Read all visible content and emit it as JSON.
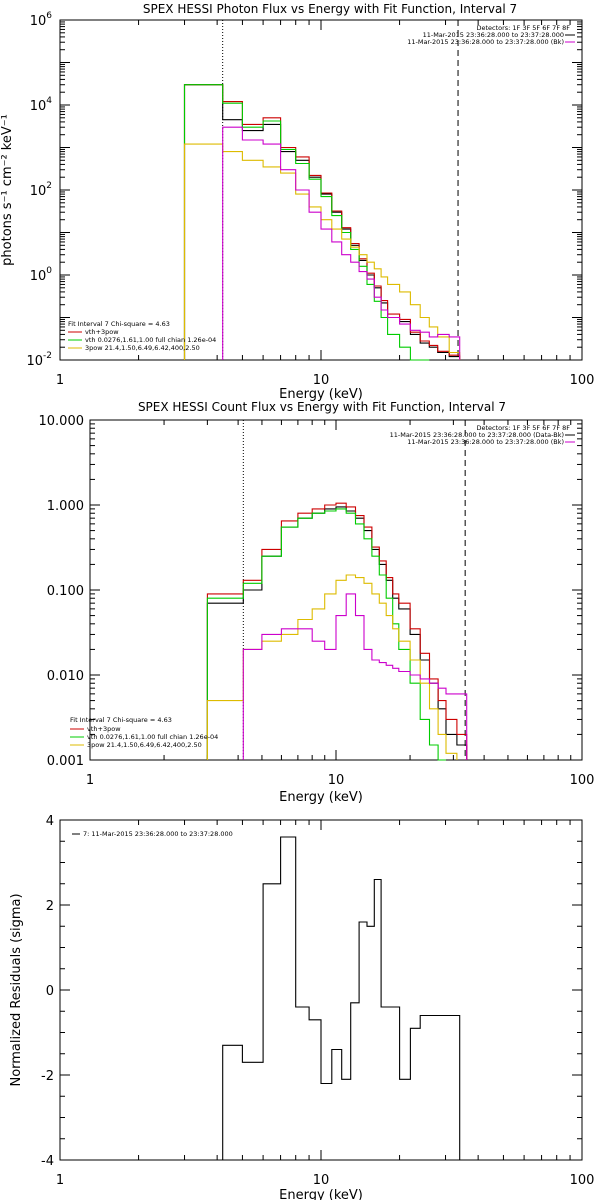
{
  "chart_data": [
    {
      "type": "line",
      "title": "SPEX HESSI Photon Flux vs Energy with Fit Function, Interval 7",
      "xlabel": "Energy (keV)",
      "ylabel": "photons s⁻¹ cm⁻² keV⁻¹",
      "xscale": "log",
      "yscale": "log",
      "xlim": [
        1,
        100
      ],
      "ylim": [
        0.01,
        1000000
      ],
      "x_ticks": [
        "1",
        "10",
        "100"
      ],
      "y_ticks": [
        {
          "v": 0.01,
          "base": "10",
          "exp": "-2"
        },
        {
          "v": 1,
          "base": "10",
          "exp": "0"
        },
        {
          "v": 100,
          "base": "10",
          "exp": "2"
        },
        {
          "v": 10000,
          "base": "10",
          "exp": "4"
        },
        {
          "v": 1000000,
          "base": "10",
          "exp": "6"
        }
      ],
      "vlines": [
        4.2,
        33.5
      ],
      "legend_right": [
        "Detectors: 1F 3F 5F 6F 7F 8F",
        "11-Mar-2015 23:36:28.000 to 23:37:28.000",
        "11-Mar-2015 23:36:28.000 to 23:37:28.000 (Bk)"
      ],
      "legend_left": {
        "header": "Fit Interval  7   Chi-square = 4.63",
        "items": [
          "vth+3pow",
          "vth 0.0276,1.61,1.00  full chian 1.26e-04",
          "3pow 21.4,1.50,6.49,6.42,400,2.50"
        ]
      },
      "edges": [
        3.0,
        4.2,
        5.0,
        6.0,
        7.0,
        8.0,
        9.0,
        10.0,
        11.0,
        12.0,
        13.0,
        14.0,
        15.0,
        16.0,
        17.0,
        18.0,
        20.0,
        22.0,
        24.0,
        26.0,
        28.0,
        31.0,
        34.0
      ],
      "series": [
        {
          "name": "data",
          "color": "#000000",
          "values": [
            30000,
            4500,
            2500,
            3500,
            800,
            500,
            200,
            80,
            30,
            12,
            5,
            2.2,
            1.0,
            0.5,
            0.22,
            0.1,
            0.08,
            0.04,
            0.025,
            0.02,
            0.015,
            0.012
          ]
        },
        {
          "name": "vth+3pow",
          "color": "#cc0000",
          "values": [
            30000,
            12000,
            3500,
            5000,
            1000,
            600,
            220,
            85,
            32,
            13,
            5.5,
            2.4,
            1.1,
            0.55,
            0.25,
            0.12,
            0.09,
            0.045,
            0.028,
            0.022,
            0.016,
            0.013
          ]
        },
        {
          "name": "vth",
          "color": "#00cc00",
          "values": [
            30000,
            11000,
            3000,
            4200,
            900,
            420,
            180,
            70,
            25,
            10,
            4,
            1.6,
            0.6,
            0.24,
            0.1,
            0.04,
            0.02,
            0.008,
            0.004
          ]
        },
        {
          "name": "3pow",
          "color": "#ddbb00",
          "values": [
            1200,
            800,
            500,
            350,
            250,
            80,
            40,
            20,
            12,
            7,
            4.5,
            3,
            2,
            1.4,
            0.9,
            0.6,
            0.4,
            0.2,
            0.1,
            0.06,
            0.035,
            0.015
          ]
        },
        {
          "name": "background",
          "color": "#cc00cc",
          "values": [
            null,
            3000,
            1500,
            1200,
            300,
            100,
            30,
            12,
            6,
            3,
            2,
            1.2,
            0.8,
            0.3,
            0.15,
            0.1,
            0.07,
            0.05,
            0.045,
            0.035,
            0.04,
            0.035
          ]
        }
      ]
    },
    {
      "type": "line",
      "title": "SPEX HESSI Count Flux vs Energy with Fit Function, Interval 7",
      "xlabel": "Energy (keV)",
      "ylabel": "",
      "xscale": "log",
      "yscale": "log",
      "xlim": [
        1,
        100
      ],
      "ylim": [
        0.001,
        10
      ],
      "x_ticks": [
        "1",
        "10",
        "100"
      ],
      "y_ticks": [
        {
          "v": 0.001,
          "label": "0.001"
        },
        {
          "v": 0.01,
          "label": "0.010"
        },
        {
          "v": 0.1,
          "label": "0.100"
        },
        {
          "v": 1,
          "label": "1.000"
        },
        {
          "v": 10,
          "label": "10.000"
        }
      ],
      "vlines": [
        4.2,
        33.5
      ],
      "legend_right": [
        "Detectors: 1F 3F 5F 6F 7F 8F",
        "11-Mar-2015 23:36:28.000 to 23:37:28.000 (Data-Bk)",
        "11-Mar-2015 23:36:28.000 to 23:37:28.000 (Bk)"
      ],
      "legend_left": {
        "header": "Fit Interval  7   Chi-square = 4.63",
        "items": [
          "vth+3pow",
          "vth 0.0276,1.61,1.00  full chian 1.26e-04",
          "3pow 21.4,1.50,6.49,6.42,400,2.50"
        ]
      },
      "edges": [
        3.0,
        4.2,
        5.0,
        6.0,
        7.0,
        8.0,
        9.0,
        10.0,
        11.0,
        12.0,
        13.0,
        14.0,
        15.0,
        16.0,
        17.0,
        18.0,
        20.0,
        22.0,
        24.0,
        26.0,
        28.0,
        31.0,
        34.0
      ],
      "series": [
        {
          "name": "data",
          "color": "#000000",
          "values": [
            0.07,
            0.1,
            0.25,
            0.55,
            0.7,
            0.8,
            0.9,
            0.95,
            0.85,
            0.7,
            0.5,
            0.3,
            0.2,
            0.13,
            0.08,
            0.06,
            0.03,
            0.015,
            0.008,
            0.004,
            0.002,
            0.0015
          ]
        },
        {
          "name": "vth+3pow",
          "color": "#cc0000",
          "values": [
            0.09,
            0.13,
            0.3,
            0.65,
            0.8,
            0.9,
            1.0,
            1.05,
            0.95,
            0.75,
            0.55,
            0.32,
            0.22,
            0.14,
            0.09,
            0.07,
            0.035,
            0.018,
            0.009,
            0.005,
            0.003,
            0.002
          ]
        },
        {
          "name": "vth",
          "color": "#00cc00",
          "values": [
            0.08,
            0.12,
            0.25,
            0.55,
            0.7,
            0.8,
            0.85,
            0.9,
            0.8,
            0.6,
            0.4,
            0.25,
            0.15,
            0.08,
            0.04,
            0.02,
            0.008,
            0.003,
            0.0015,
            0.001
          ]
        },
        {
          "name": "3pow",
          "color": "#ddbb00",
          "values": [
            0.005,
            0.02,
            0.025,
            0.03,
            0.045,
            0.06,
            0.09,
            0.13,
            0.15,
            0.14,
            0.12,
            0.09,
            0.07,
            0.05,
            0.035,
            0.025,
            0.015,
            0.008,
            0.004,
            0.002,
            0.0012
          ]
        },
        {
          "name": "background",
          "color": "#cc00cc",
          "values": [
            null,
            0.02,
            0.03,
            0.035,
            0.035,
            0.025,
            0.02,
            0.05,
            0.09,
            0.05,
            0.02,
            0.015,
            0.014,
            0.013,
            0.012,
            0.011,
            0.01,
            0.009,
            0.008,
            0.007,
            0.006,
            0.006
          ]
        }
      ]
    },
    {
      "type": "line",
      "title": "",
      "xlabel": "Energy (keV)",
      "ylabel": "Normalized Residuals (sigma)",
      "xscale": "log",
      "yscale": "linear",
      "xlim": [
        1,
        100
      ],
      "ylim": [
        -4,
        4
      ],
      "x_ticks": [
        "1",
        "10",
        "100"
      ],
      "y_ticks": [
        {
          "v": -4,
          "label": "-4"
        },
        {
          "v": -2,
          "label": "-2"
        },
        {
          "v": 0,
          "label": "0"
        },
        {
          "v": 2,
          "label": "2"
        },
        {
          "v": 4,
          "label": "4"
        }
      ],
      "legend_right": [],
      "legend_left": {
        "header": "",
        "items": [
          "7: 11-Mar-2015 23:36:28.000 to 23:37:28.000"
        ]
      },
      "edges": [
        4.2,
        5.0,
        6.0,
        7.0,
        8.0,
        9.0,
        10.0,
        11.0,
        12.0,
        13.0,
        14.0,
        15.0,
        16.0,
        17.0,
        18.0,
        20.0,
        22.0,
        24.0,
        26.0,
        28.0,
        31.0,
        34.0
      ],
      "series": [
        {
          "name": "residuals",
          "color": "#000000",
          "values": [
            -1.3,
            -1.7,
            2.5,
            3.6,
            -0.4,
            -0.7,
            -2.2,
            -1.4,
            -2.1,
            -0.3,
            1.6,
            1.5,
            2.6,
            -0.4,
            -0.4,
            -2.1,
            -0.9,
            -0.6,
            -0.6,
            -0.6,
            -0.6
          ]
        }
      ]
    }
  ]
}
